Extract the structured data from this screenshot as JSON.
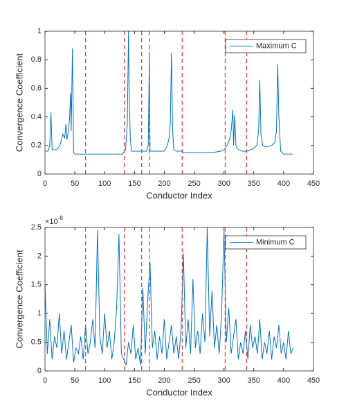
{
  "chart_data": [
    {
      "type": "line",
      "xlabel": "Conductor Index",
      "ylabel": "Convergence Coefficient",
      "xlim": [
        0,
        450
      ],
      "ylim": [
        0,
        1
      ],
      "xticks": [
        0,
        50,
        100,
        150,
        200,
        250,
        300,
        350,
        400,
        450
      ],
      "yticks": [
        0,
        0.2,
        0.4,
        0.6,
        0.8,
        1
      ],
      "legend": "upper right",
      "vlines": [
        68,
        133,
        162,
        175,
        230,
        302,
        338
      ],
      "vline_color": "#e8383d",
      "x": [
        0,
        5,
        8,
        10,
        12,
        20,
        25,
        30,
        33,
        35,
        37,
        39,
        41,
        43,
        44,
        46,
        48,
        50,
        60,
        68,
        80,
        100,
        120,
        130,
        133,
        135,
        138,
        140,
        141,
        143,
        145,
        150,
        160,
        170,
        173,
        175,
        176,
        180,
        200,
        205,
        208,
        210,
        212,
        214,
        216,
        220,
        230,
        232,
        250,
        280,
        295,
        300,
        305,
        310,
        312,
        315,
        316,
        318,
        320,
        322,
        325,
        330,
        338,
        340,
        350,
        355,
        358,
        360,
        362,
        365,
        370,
        380,
        385,
        388,
        390,
        392,
        395,
        400,
        410,
        415
      ],
      "series": [
        {
          "name": "Maximum C",
          "color": "#0072bd",
          "values": [
            0.16,
            0.16,
            0.2,
            0.43,
            0.17,
            0.17,
            0.2,
            0.28,
            0.25,
            0.35,
            0.24,
            0.3,
            0.38,
            0.57,
            0.3,
            0.88,
            0.15,
            0.14,
            0.14,
            0.14,
            0.14,
            0.14,
            0.14,
            0.14,
            0.16,
            0.17,
            0.35,
            1.0,
            0.6,
            0.25,
            0.16,
            0.16,
            0.16,
            0.16,
            0.2,
            0.85,
            0.16,
            0.16,
            0.16,
            0.2,
            0.25,
            0.35,
            0.85,
            0.3,
            0.17,
            0.16,
            0.16,
            0.15,
            0.15,
            0.15,
            0.16,
            0.17,
            0.2,
            0.25,
            0.3,
            0.45,
            0.2,
            0.41,
            0.2,
            0.18,
            0.17,
            0.16,
            0.16,
            0.16,
            0.18,
            0.2,
            0.3,
            0.66,
            0.28,
            0.2,
            0.19,
            0.2,
            0.22,
            0.3,
            0.77,
            0.4,
            0.16,
            0.14,
            0.14,
            0.14
          ]
        }
      ]
    },
    {
      "type": "line",
      "xlabel": "Conductor Index",
      "ylabel": "Convergence Coefficient",
      "multiplier_base": "×10",
      "multiplier_exponent": "-8",
      "xlim": [
        0,
        450
      ],
      "ylim": [
        0,
        2.5
      ],
      "xticks": [
        0,
        50,
        100,
        150,
        200,
        250,
        300,
        350,
        400,
        450
      ],
      "yticks": [
        0,
        0.5,
        1,
        1.5,
        2,
        2.5
      ],
      "legend": "upper right",
      "vlines": [
        68,
        133,
        162,
        175,
        230,
        302,
        338
      ],
      "vline_color": "#e8383d",
      "x": [
        0,
        4,
        8,
        12,
        16,
        20,
        24,
        28,
        32,
        36,
        40,
        44,
        48,
        52,
        56,
        60,
        64,
        68,
        72,
        76,
        80,
        84,
        88,
        92,
        96,
        100,
        104,
        108,
        112,
        116,
        120,
        124,
        128,
        132,
        136,
        140,
        144,
        148,
        152,
        156,
        160,
        164,
        168,
        172,
        176,
        180,
        184,
        188,
        192,
        196,
        200,
        204,
        208,
        212,
        216,
        220,
        224,
        228,
        232,
        236,
        240,
        244,
        248,
        252,
        256,
        260,
        264,
        268,
        272,
        276,
        280,
        284,
        288,
        292,
        296,
        300,
        304,
        308,
        312,
        316,
        320,
        324,
        328,
        332,
        336,
        340,
        344,
        348,
        352,
        356,
        360,
        364,
        368,
        372,
        376,
        380,
        384,
        388,
        392,
        396,
        400,
        404,
        408,
        412,
        416
      ],
      "series": [
        {
          "name": "Minimum C",
          "color": "#0072bd",
          "values": [
            1.5,
            0.3,
            0.9,
            0.2,
            0.6,
            0.4,
            1.0,
            0.3,
            0.7,
            0.2,
            0.5,
            0.8,
            0.15,
            0.4,
            0.3,
            0.6,
            0.2,
            0.8,
            0.3,
            0.5,
            0.9,
            0.4,
            2.45,
            0.6,
            0.3,
            1.0,
            0.4,
            0.7,
            0.2,
            0.5,
            1.1,
            2.38,
            0.3,
            0.2,
            0.1,
            0.5,
            0.3,
            0.8,
            0.2,
            0.4,
            0.1,
            1.45,
            0.3,
            1.2,
            1.9,
            0.4,
            0.7,
            0.2,
            0.6,
            0.3,
            0.9,
            0.2,
            0.5,
            0.8,
            0.3,
            0.6,
            0.2,
            0.7,
            2.05,
            0.4,
            0.9,
            0.3,
            1.6,
            0.4,
            0.7,
            0.3,
            1.0,
            0.5,
            2.5,
            0.6,
            1.4,
            0.4,
            0.8,
            0.3,
            1.0,
            2.45,
            0.5,
            1.1,
            0.3,
            0.6,
            0.9,
            0.2,
            0.5,
            0.3,
            0.7,
            0.2,
            0.8,
            0.4,
            0.6,
            0.3,
            0.9,
            0.2,
            0.5,
            0.3,
            0.7,
            0.2,
            0.6,
            0.4,
            0.8,
            0.3,
            0.5,
            0.2,
            0.7,
            0.3,
            0.4
          ]
        }
      ]
    }
  ]
}
